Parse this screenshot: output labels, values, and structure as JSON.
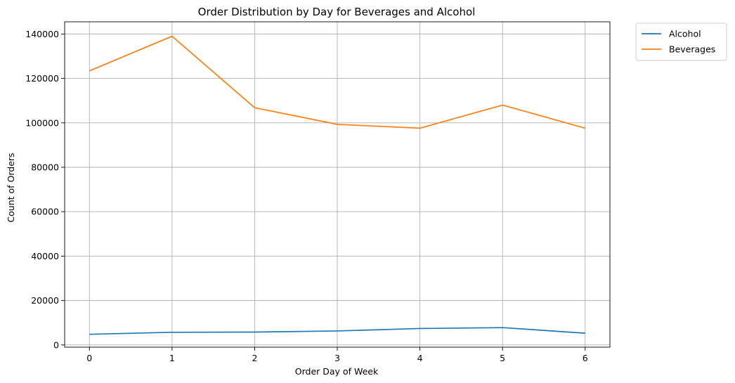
{
  "chart_data": {
    "type": "line",
    "title": "Order Distribution by Day for Beverages and Alcohol",
    "xlabel": "Order Day of Week",
    "ylabel": "Count of Orders",
    "x": [
      0,
      1,
      2,
      3,
      4,
      5,
      6
    ],
    "x_ticks": [
      0,
      1,
      2,
      3,
      4,
      5,
      6
    ],
    "y_ticks": [
      0,
      20000,
      40000,
      60000,
      80000,
      100000,
      120000,
      140000
    ],
    "xlim": [
      -0.3,
      6.3
    ],
    "ylim": [
      -1000,
      145500
    ],
    "grid": true,
    "legend_position": "outside-top-right",
    "series": [
      {
        "name": "Alcohol",
        "color": "#1f77b4",
        "values": [
          4800,
          5700,
          5800,
          6300,
          7400,
          7800,
          5300
        ]
      },
      {
        "name": "Beverages",
        "color": "#ff7f0e",
        "values": [
          123400,
          139000,
          106800,
          99300,
          97600,
          108000,
          97600
        ]
      }
    ]
  }
}
